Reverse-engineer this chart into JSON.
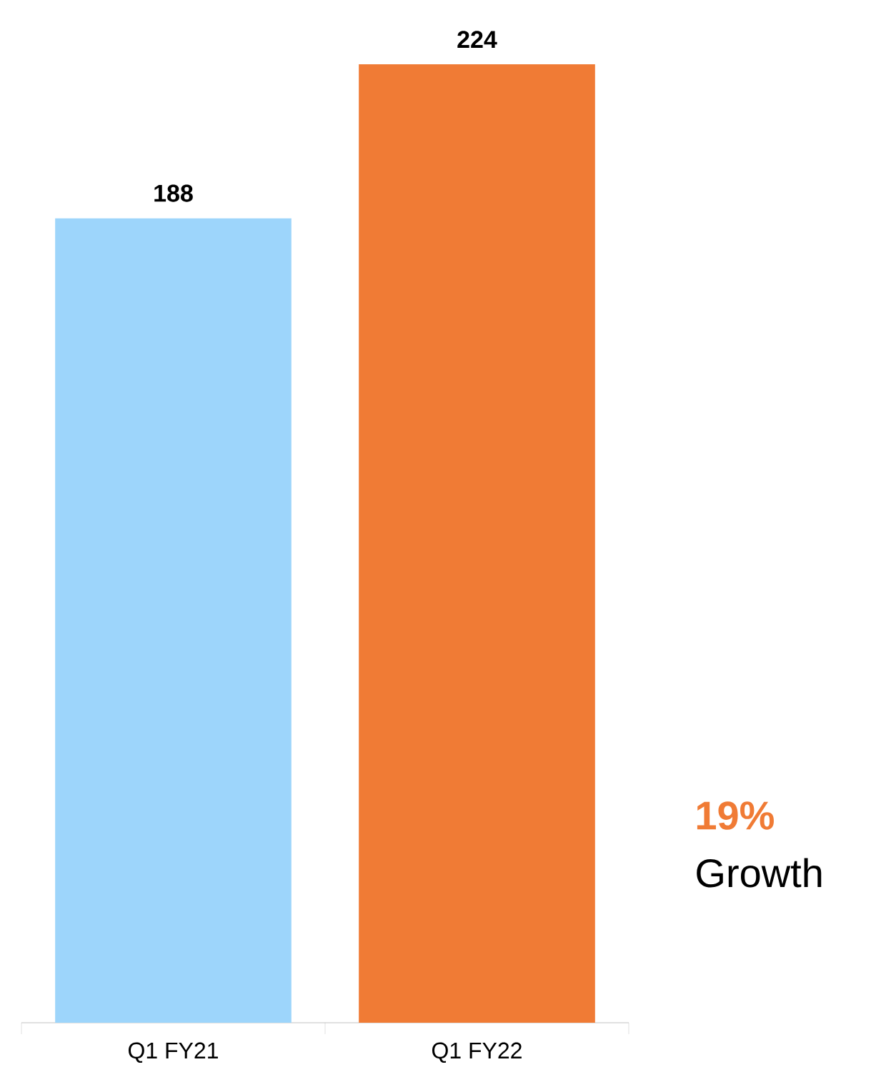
{
  "chart_data": {
    "type": "bar",
    "categories": [
      "Q1 FY21",
      "Q1 FY22"
    ],
    "values": [
      188,
      224
    ],
    "colors": [
      "#9dd5fb",
      "#f07b35"
    ],
    "data_labels": true,
    "annotations": [
      "19%",
      "Growth"
    ]
  }
}
